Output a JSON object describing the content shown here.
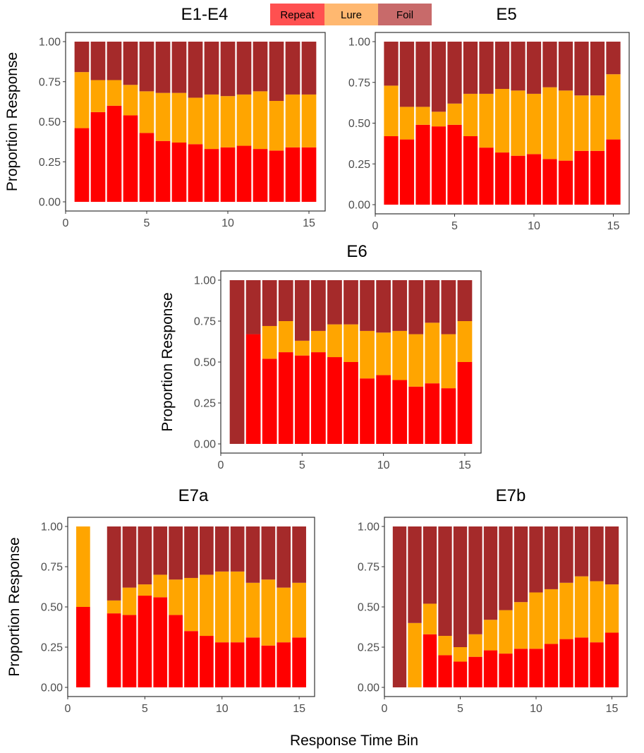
{
  "figure": {
    "xlabel": "Response Time Bin",
    "colors": {
      "Repeat": "#ff0000",
      "Lure": "#ffa500",
      "Foil": "#a52a2a"
    },
    "legend": {
      "items": [
        {
          "label": "Repeat",
          "color": "#ff5050"
        },
        {
          "label": "Lure",
          "color": "#ffb870"
        },
        {
          "label": "Foil",
          "color": "#c86a6a"
        }
      ]
    }
  },
  "chart_data": [
    {
      "type": "bar",
      "stacked": true,
      "title": "E1-E4",
      "ylabel": "Proportion Response",
      "xlabel": "Response Time Bin",
      "ylim": [
        0,
        1
      ],
      "xlim": [
        0,
        16
      ],
      "xticks": [
        0,
        5,
        10,
        15
      ],
      "yticks": [
        "0.00",
        "0.25",
        "0.50",
        "0.75",
        "1.00"
      ],
      "categories": [
        1,
        2,
        3,
        4,
        5,
        6,
        7,
        8,
        9,
        10,
        11,
        12,
        13,
        14,
        15
      ],
      "series": [
        {
          "name": "Repeat",
          "values": [
            0.46,
            0.56,
            0.6,
            0.54,
            0.43,
            0.38,
            0.37,
            0.36,
            0.33,
            0.34,
            0.35,
            0.33,
            0.32,
            0.34,
            0.34
          ]
        },
        {
          "name": "Lure",
          "values": [
            0.35,
            0.2,
            0.16,
            0.19,
            0.26,
            0.3,
            0.31,
            0.29,
            0.34,
            0.32,
            0.32,
            0.36,
            0.31,
            0.33,
            0.33
          ]
        },
        {
          "name": "Foil",
          "values": [
            0.19,
            0.24,
            0.24,
            0.27,
            0.31,
            0.32,
            0.32,
            0.35,
            0.33,
            0.34,
            0.33,
            0.31,
            0.37,
            0.33,
            0.33
          ]
        }
      ]
    },
    {
      "type": "bar",
      "stacked": true,
      "title": "E5",
      "ylabel": "",
      "xlabel": "Response Time Bin",
      "ylim": [
        0,
        1
      ],
      "xlim": [
        0,
        16
      ],
      "xticks": [
        0,
        5,
        10,
        15
      ],
      "yticks": [
        "0.00",
        "0.25",
        "0.50",
        "0.75",
        "1.00"
      ],
      "categories": [
        1,
        2,
        3,
        4,
        5,
        6,
        7,
        8,
        9,
        10,
        11,
        12,
        13,
        14,
        15
      ],
      "series": [
        {
          "name": "Repeat",
          "values": [
            0.42,
            0.4,
            0.49,
            0.48,
            0.49,
            0.42,
            0.35,
            0.32,
            0.3,
            0.31,
            0.28,
            0.27,
            0.33,
            0.33,
            0.4
          ]
        },
        {
          "name": "Lure",
          "values": [
            0.31,
            0.2,
            0.11,
            0.09,
            0.13,
            0.26,
            0.33,
            0.39,
            0.4,
            0.37,
            0.44,
            0.43,
            0.34,
            0.34,
            0.4
          ]
        },
        {
          "name": "Foil",
          "values": [
            0.27,
            0.4,
            0.4,
            0.43,
            0.38,
            0.32,
            0.32,
            0.29,
            0.3,
            0.32,
            0.28,
            0.3,
            0.33,
            0.33,
            0.2
          ]
        }
      ]
    },
    {
      "type": "bar",
      "stacked": true,
      "title": "E6",
      "ylabel": "Proportion Response",
      "xlabel": "Response Time Bin",
      "ylim": [
        0,
        1
      ],
      "xlim": [
        0,
        16
      ],
      "xticks": [
        0,
        5,
        10,
        15
      ],
      "yticks": [
        "0.00",
        "0.25",
        "0.50",
        "0.75",
        "1.00"
      ],
      "categories": [
        1,
        2,
        3,
        4,
        5,
        6,
        7,
        8,
        9,
        10,
        11,
        12,
        13,
        14,
        15
      ],
      "series": [
        {
          "name": "Repeat",
          "values": [
            0.0,
            0.67,
            0.52,
            0.56,
            0.54,
            0.56,
            0.53,
            0.5,
            0.4,
            0.42,
            0.39,
            0.35,
            0.37,
            0.34,
            0.5
          ]
        },
        {
          "name": "Lure",
          "values": [
            0.0,
            0.0,
            0.2,
            0.19,
            0.09,
            0.13,
            0.2,
            0.23,
            0.29,
            0.26,
            0.3,
            0.32,
            0.37,
            0.33,
            0.25
          ]
        },
        {
          "name": "Foil",
          "values": [
            1.0,
            0.33,
            0.28,
            0.25,
            0.37,
            0.31,
            0.27,
            0.27,
            0.31,
            0.32,
            0.31,
            0.33,
            0.26,
            0.33,
            0.25
          ]
        }
      ]
    },
    {
      "type": "bar",
      "stacked": true,
      "title": "E7a",
      "ylabel": "Proportion Response",
      "xlabel": "Response Time Bin",
      "ylim": [
        0,
        1
      ],
      "xlim": [
        0,
        16
      ],
      "xticks": [
        0,
        5,
        10,
        15
      ],
      "yticks": [
        "0.00",
        "0.25",
        "0.50",
        "0.75",
        "1.00"
      ],
      "categories": [
        1,
        3,
        4,
        5,
        6,
        7,
        8,
        9,
        10,
        11,
        12,
        13,
        14,
        15
      ],
      "series": [
        {
          "name": "Repeat",
          "values": [
            0.5,
            0.46,
            0.45,
            0.57,
            0.56,
            0.45,
            0.35,
            0.32,
            0.28,
            0.28,
            0.31,
            0.26,
            0.28,
            0.31
          ]
        },
        {
          "name": "Lure",
          "values": [
            0.5,
            0.08,
            0.17,
            0.07,
            0.14,
            0.22,
            0.33,
            0.38,
            0.44,
            0.44,
            0.34,
            0.41,
            0.34,
            0.34
          ]
        },
        {
          "name": "Foil",
          "values": [
            0.0,
            0.46,
            0.38,
            0.36,
            0.3,
            0.33,
            0.32,
            0.3,
            0.28,
            0.28,
            0.35,
            0.33,
            0.38,
            0.35
          ]
        }
      ]
    },
    {
      "type": "bar",
      "stacked": true,
      "title": "E7b",
      "ylabel": "",
      "xlabel": "Response Time Bin",
      "ylim": [
        0,
        1
      ],
      "xlim": [
        0,
        16
      ],
      "xticks": [
        0,
        5,
        10,
        15
      ],
      "yticks": [
        "0.00",
        "0.25",
        "0.50",
        "0.75",
        "1.00"
      ],
      "categories": [
        1,
        2,
        3,
        4,
        5,
        6,
        7,
        8,
        9,
        10,
        11,
        12,
        13,
        14,
        15
      ],
      "series": [
        {
          "name": "Repeat",
          "values": [
            0.0,
            0.0,
            0.33,
            0.2,
            0.16,
            0.19,
            0.23,
            0.21,
            0.24,
            0.24,
            0.27,
            0.3,
            0.31,
            0.28,
            0.34
          ]
        },
        {
          "name": "Lure",
          "values": [
            0.0,
            0.4,
            0.19,
            0.12,
            0.09,
            0.14,
            0.19,
            0.27,
            0.29,
            0.35,
            0.34,
            0.35,
            0.38,
            0.38,
            0.3
          ]
        },
        {
          "name": "Foil",
          "values": [
            1.0,
            0.6,
            0.48,
            0.68,
            0.75,
            0.67,
            0.58,
            0.52,
            0.47,
            0.41,
            0.39,
            0.35,
            0.31,
            0.34,
            0.36
          ]
        }
      ]
    }
  ]
}
